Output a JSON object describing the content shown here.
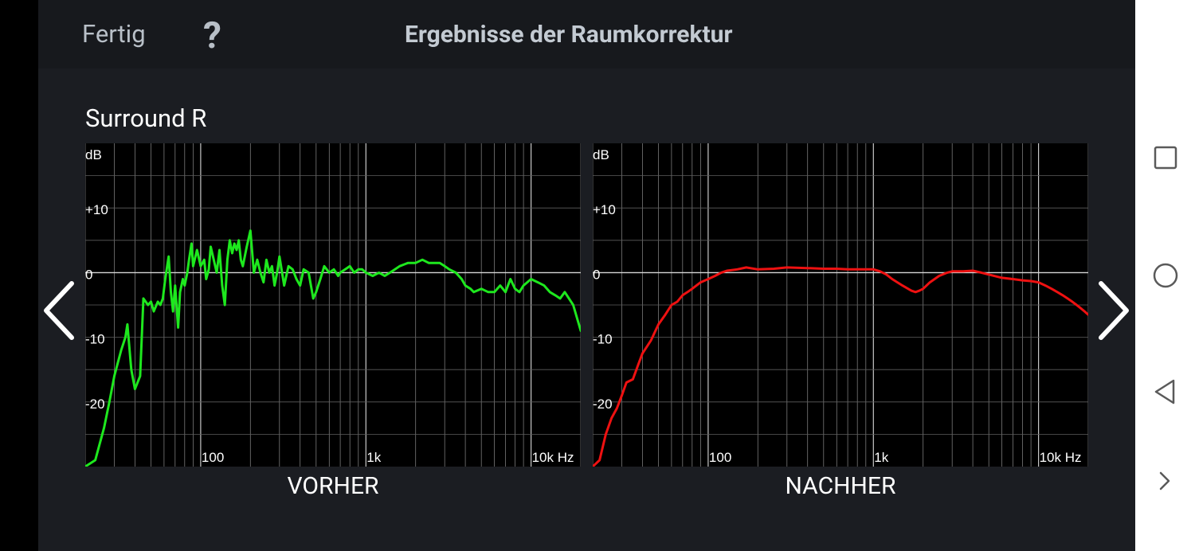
{
  "header": {
    "done_label": "Fertig",
    "help_label": "?",
    "title": "Ergebnisse der Raumkorrektur"
  },
  "speaker": "Surround R",
  "icons": {
    "prev": "chevron-left-icon",
    "next": "chevron-right-icon",
    "recent": "square-icon",
    "home": "circle-icon",
    "back": "triangle-back-icon",
    "expand": "chevron-right-icon"
  },
  "colors": {
    "before": "#1ee81e",
    "after": "#ee1111",
    "background": "#1b1d22",
    "header": "#17191d",
    "plot_bg": "#000000"
  },
  "chart_data": [
    {
      "type": "line",
      "title": "",
      "caption": "VORHER",
      "xlabel": "Hz",
      "ylabel": "dB",
      "x_scale": "log",
      "xlim": [
        20,
        20000
      ],
      "ylim": [
        -30,
        20
      ],
      "x_tick_labels": [
        "100",
        "1k",
        "10k Hz"
      ],
      "y_tick_labels": [
        "dB",
        "+10",
        "0",
        "-10",
        "-20"
      ],
      "grid": true,
      "series": [
        {
          "color": "#1ee81e",
          "x": [
            20,
            23,
            26,
            28,
            30,
            33,
            35,
            36,
            38,
            40,
            43,
            45,
            48,
            50,
            52,
            55,
            57,
            59,
            61,
            64,
            66,
            68,
            70,
            73,
            75,
            78,
            80,
            83,
            85,
            88,
            90,
            95,
            100,
            105,
            108,
            112,
            115,
            120,
            125,
            130,
            135,
            140,
            145,
            150,
            155,
            160,
            165,
            170,
            175,
            180,
            190,
            200,
            210,
            220,
            230,
            240,
            250,
            260,
            270,
            280,
            290,
            300,
            320,
            340,
            360,
            380,
            400,
            420,
            450,
            480,
            500,
            530,
            560,
            600,
            640,
            680,
            700,
            750,
            800,
            850,
            900,
            950,
            1000,
            1100,
            1200,
            1300,
            1400,
            1500,
            1600,
            1800,
            2000,
            2200,
            2400,
            2600,
            2800,
            3000,
            3200,
            3500,
            3800,
            4000,
            4300,
            4500,
            5000,
            5500,
            6000,
            6500,
            7000,
            7500,
            8000,
            8500,
            9000,
            10000,
            11000,
            12000,
            13000,
            14000,
            15000,
            16000,
            18000,
            20000
          ],
          "values": [
            -30,
            -29,
            -24,
            -20,
            -16,
            -12,
            -10,
            -8,
            -15,
            -18,
            -16,
            -4,
            -5,
            -4.5,
            -6,
            -4.5,
            -5,
            -4,
            -1,
            2.5,
            -3,
            -6,
            -2,
            -8.5,
            -3,
            -1,
            -2,
            0,
            2,
            4.5,
            1,
            3.5,
            1,
            2,
            -1,
            0.5,
            4,
            2,
            0,
            3.5,
            -2,
            -5,
            2,
            5,
            3,
            4.5,
            3.5,
            5,
            2,
            1,
            4,
            6.5,
            0,
            2,
            0,
            -1.5,
            2,
            0,
            1,
            -2,
            0,
            2.5,
            -2,
            1,
            0.5,
            -1,
            -2,
            0.5,
            0,
            -4,
            -3,
            -1,
            1,
            0,
            0.5,
            -0.5,
            0,
            0.5,
            1,
            0,
            0.5,
            0.5,
            0,
            -0.5,
            0,
            -0.5,
            0,
            0.5,
            1,
            1.5,
            1.5,
            2,
            1.5,
            1.5,
            1.5,
            1,
            0.5,
            0,
            -1,
            -2,
            -2.5,
            -3,
            -2.5,
            -3,
            -3,
            -2,
            -3,
            -1,
            -2.5,
            -3,
            -2,
            -1,
            -1.5,
            -2,
            -3,
            -3.5,
            -4,
            -3,
            -5,
            -9
          ]
        }
      ]
    },
    {
      "type": "line",
      "title": "",
      "caption": "NACHHER",
      "xlabel": "Hz",
      "ylabel": "dB",
      "x_scale": "log",
      "xlim": [
        20,
        20000
      ],
      "ylim": [
        -30,
        20
      ],
      "x_tick_labels": [
        "100",
        "1k",
        "10k Hz"
      ],
      "y_tick_labels": [
        "dB",
        "+10",
        "0",
        "-10",
        "-20"
      ],
      "grid": true,
      "series": [
        {
          "color": "#ee1111",
          "x": [
            20,
            22,
            24,
            26,
            28,
            30,
            32,
            35,
            38,
            40,
            45,
            50,
            55,
            60,
            65,
            70,
            75,
            80,
            90,
            100,
            110,
            120,
            130,
            150,
            170,
            200,
            250,
            300,
            400,
            500,
            600,
            700,
            800,
            900,
            1000,
            1100,
            1200,
            1300,
            1500,
            1700,
            1800,
            1900,
            2000,
            2200,
            2500,
            2800,
            3000,
            3500,
            4000,
            4500,
            5000,
            6000,
            7000,
            8000,
            9000,
            10000,
            11000,
            12000,
            13000,
            14000,
            15000,
            16000,
            17000,
            18000,
            19000,
            20000
          ],
          "values": [
            -30,
            -29,
            -25,
            -22.5,
            -21,
            -19,
            -17,
            -16.5,
            -14,
            -12.5,
            -10.5,
            -8,
            -6.5,
            -5,
            -4.5,
            -3.5,
            -3,
            -2.5,
            -1.5,
            -1,
            -0.5,
            0,
            0.3,
            0.5,
            0.8,
            0.5,
            0.6,
            0.8,
            0.7,
            0.6,
            0.6,
            0.5,
            0.5,
            0.5,
            0.5,
            0.2,
            -0.3,
            -1,
            -2,
            -2.8,
            -3,
            -2.8,
            -2.5,
            -1.5,
            -0.5,
            0,
            0.2,
            0.2,
            0.3,
            0,
            -0.3,
            -0.8,
            -1,
            -1.2,
            -1.3,
            -1.5,
            -2,
            -2.5,
            -3,
            -3.5,
            -4,
            -4.5,
            -5,
            -5.5,
            -6,
            -6.5
          ]
        }
      ]
    }
  ]
}
